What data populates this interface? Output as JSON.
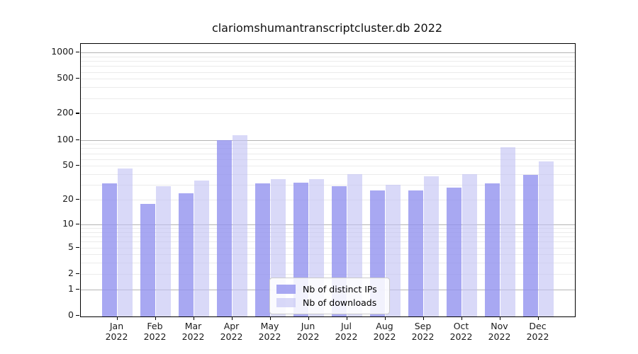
{
  "chart_data": {
    "type": "bar",
    "title": "clariomshumantranscriptcluster.db 2022",
    "categories": [
      "Jan",
      "Feb",
      "Mar",
      "Apr",
      "May",
      "Jun",
      "Jul",
      "Aug",
      "Sep",
      "Oct",
      "Nov",
      "Dec"
    ],
    "year": "2022",
    "series": [
      {
        "name": "Nb of distinct IPs",
        "color": "rgba(146,146,239,0.8)",
        "values": [
          31,
          18,
          24,
          100,
          31,
          32,
          29,
          26,
          26,
          28,
          31,
          39
        ]
      },
      {
        "name": "Nb of downloads",
        "color": "rgba(193,193,243,0.62)",
        "values": [
          47,
          29,
          34,
          113,
          35,
          35,
          40,
          30,
          38,
          40,
          82,
          56
        ]
      }
    ],
    "y_ticks": [
      0,
      1,
      2,
      5,
      10,
      20,
      50,
      100,
      200,
      500,
      1000
    ],
    "y_scale": "log10(value+1)",
    "ylim": [
      0,
      1250
    ],
    "grid": {
      "major_color": "#b4b4b4",
      "minor_color": "#ebebeb"
    },
    "legend_position": "lower center",
    "axis_color": "#000000"
  }
}
